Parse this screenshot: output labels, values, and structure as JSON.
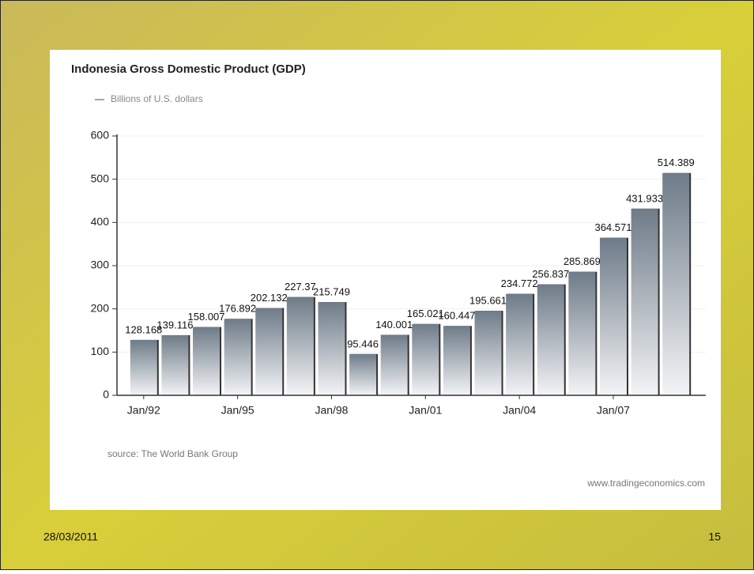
{
  "slide": {
    "date": "28/03/2011",
    "page": "15"
  },
  "chart_data": {
    "type": "bar",
    "title": "Indonesia Gross Domestic Product (GDP)",
    "categories": [
      "Jan/92",
      null,
      null,
      "Jan/95",
      null,
      null,
      "Jan/98",
      null,
      null,
      "Jan/01",
      null,
      null,
      "Jan/04",
      null,
      null,
      "Jan/07",
      null,
      null
    ],
    "series": [
      {
        "name": "Billions of U.S. dollars",
        "color": "#6e7b88",
        "values": [
          128.168,
          139.116,
          158.007,
          176.892,
          202.132,
          227.37,
          215.749,
          95.446,
          140.001,
          165.021,
          160.447,
          195.661,
          234.772,
          256.837,
          285.869,
          364.571,
          431.933,
          514.389
        ]
      }
    ],
    "ylim": [
      0,
      600
    ],
    "yticks": [
      0,
      100,
      200,
      300,
      400,
      500,
      600
    ],
    "grid": true,
    "source": "source: The World Bank Group",
    "watermark": "www.tradingeconomics.com"
  }
}
